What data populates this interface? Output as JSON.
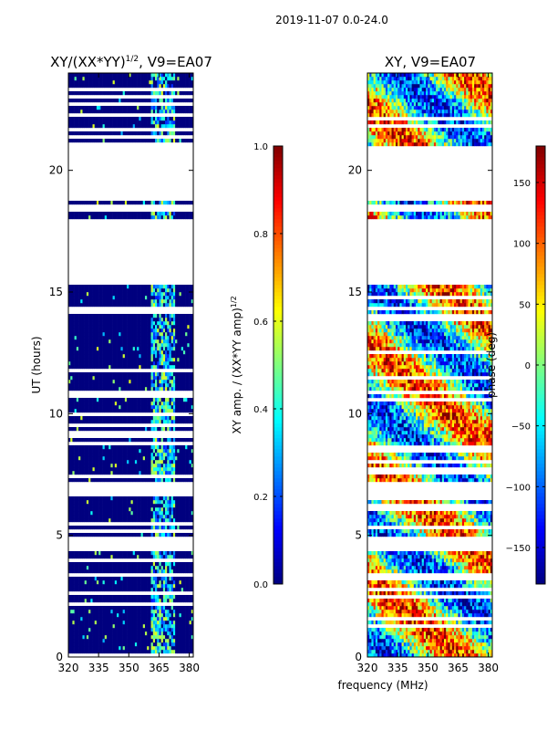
{
  "figure": {
    "suptitle": "2019-11-07 0.0-24.0",
    "xlabel_shared": "frequency (MHz)"
  },
  "colors": {
    "jet": [
      "#00007f",
      "#0000ff",
      "#007fff",
      "#00ffff",
      "#7fff7f",
      "#ffff00",
      "#ff7f00",
      "#ff0000",
      "#7f0000"
    ],
    "axis": "#000000",
    "background": "#ffffff"
  },
  "chart_data": [
    {
      "type": "heatmap",
      "name": "amplitude",
      "title_main": "XY/(XX*YY)",
      "title_sup": "1/2",
      "title_tail": ", V9=EA07",
      "xlabel": "",
      "ylabel": "UT (hours)",
      "xlim": [
        320,
        382
      ],
      "ylim": [
        0,
        24
      ],
      "xticks": [
        320,
        335,
        350,
        365,
        380
      ],
      "yticks": [
        0,
        5,
        10,
        15,
        20
      ],
      "flagged_ut_ranges": [
        [
          4.3,
          4.9
        ],
        [
          6.8,
          7.2
        ],
        [
          15.3,
          18.0
        ],
        [
          18.3,
          18.6
        ],
        [
          18.8,
          21.0
        ]
      ],
      "rfi_band_mhz": [
        361,
        373
      ],
      "colorbar": {
        "label_main": "XY amp. / (XX*YY amp)",
        "label_sup": "1/2",
        "range": [
          0.0,
          1.0
        ],
        "ticks": [
          0.0,
          0.2,
          0.4,
          0.6,
          0.8,
          1.0
        ]
      }
    },
    {
      "type": "heatmap",
      "name": "phase",
      "title_main": "XY, V9=EA07",
      "xlabel": "frequency (MHz)",
      "ylabel": "",
      "xlim": [
        320,
        382
      ],
      "ylim": [
        0,
        24
      ],
      "xticks": [
        320,
        335,
        350,
        365,
        380
      ],
      "yticks": [
        0,
        5,
        10,
        15,
        20
      ],
      "flagged_ut_ranges": [
        [
          4.3,
          4.9
        ],
        [
          6.8,
          7.2
        ],
        [
          15.3,
          18.0
        ],
        [
          18.3,
          18.6
        ],
        [
          18.8,
          21.0
        ]
      ],
      "colorbar": {
        "label": "phase (deg)",
        "range": [
          -180,
          180
        ],
        "ticks": [
          -150,
          -100,
          -50,
          0,
          50,
          100,
          150
        ]
      }
    }
  ]
}
